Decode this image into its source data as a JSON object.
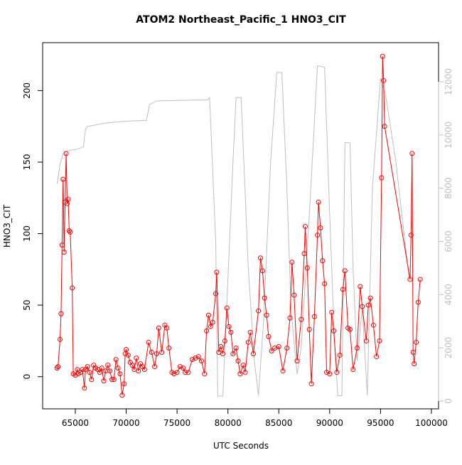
{
  "chart_data": {
    "type": "line",
    "title": "ATOM2 Northeast_Pacific_1 HNO3_CIT",
    "xlabel": "UTC Seconds",
    "ylabel": "HNO3_CIT",
    "xlim": [
      61790,
      100700
    ],
    "xticks": [
      65000,
      70000,
      75000,
      80000,
      85000,
      90000,
      95000,
      100000
    ],
    "ylim": [
      -22.5,
      233.5
    ],
    "yticks": [
      0,
      50,
      100,
      150,
      200
    ],
    "y2lim": [
      -294,
      13470
    ],
    "y2ticks": [
      0,
      2000,
      4000,
      6000,
      8000,
      10000,
      12000
    ],
    "series": [
      {
        "color": "#bebebe",
        "axis": "y2",
        "markers": false,
        "x": [
          63200,
          63500,
          63800,
          64200,
          65000,
          65800,
          66000,
          66200,
          68000,
          70000,
          72000,
          72300,
          73000,
          75000,
          78000,
          78200,
          78800,
          79000,
          79500,
          80500,
          80800,
          81300,
          82000,
          82600,
          83000,
          83500,
          84200,
          84800,
          85300,
          85800,
          86200,
          86800,
          87200,
          88000,
          88800,
          89500,
          90000,
          90500,
          90800,
          91200,
          91500,
          92000,
          92300,
          92700,
          93200,
          93700,
          94200,
          95000,
          95500,
          96500,
          97800
        ],
        "values": [
          8150,
          8900,
          9300,
          9400,
          9450,
          9550,
          10200,
          10320,
          10450,
          10520,
          10550,
          11150,
          11280,
          11300,
          11320,
          11410,
          6000,
          190,
          190,
          9000,
          11410,
          11410,
          5000,
          1500,
          200,
          3000,
          9000,
          12350,
          12350,
          8000,
          3500,
          1000,
          2000,
          7000,
          12600,
          12550,
          7000,
          2000,
          200,
          200,
          9720,
          9700,
          5000,
          1500,
          3500,
          200,
          8000,
          12130,
          11500,
          9000,
          4650
        ]
      },
      {
        "color": "#ff0000",
        "axis": "y",
        "markers": true,
        "x": [
          63200,
          63300,
          63500,
          63600,
          63700,
          63800,
          63900,
          64000,
          64100,
          64200,
          64300,
          64400,
          64500,
          64700,
          64800,
          65000,
          65200,
          65300,
          65500,
          65700,
          65900,
          66000,
          66200,
          66400,
          66600,
          66800,
          67000,
          67200,
          67400,
          67600,
          67800,
          68000,
          68200,
          68400,
          68600,
          68800,
          69000,
          69200,
          69400,
          69600,
          69800,
          69900,
          70000,
          70200,
          70400,
          70600,
          70800,
          71000,
          71200,
          71400,
          71600,
          71800,
          72200,
          72500,
          72800,
          73000,
          73200,
          73500,
          73800,
          74000,
          74200,
          74500,
          74700,
          75000,
          75300,
          75600,
          75800,
          76100,
          76500,
          76800,
          77100,
          77400,
          77700,
          77900,
          78100,
          78300,
          78500,
          78800,
          78900,
          79100,
          79300,
          79500,
          79700,
          79900,
          80100,
          80300,
          80500,
          80800,
          81000,
          81200,
          81500,
          81700,
          82000,
          82200,
          82500,
          83000,
          83200,
          83400,
          83600,
          83800,
          84000,
          84300,
          84600,
          85000,
          85400,
          85800,
          86100,
          86300,
          86500,
          86800,
          87200,
          87500,
          87600,
          87800,
          88000,
          88200,
          88500,
          88800,
          88900,
          89100,
          89300,
          89500,
          89700,
          90000,
          90200,
          90400,
          90700,
          91000,
          91300,
          91500,
          91800,
          92000,
          92300,
          92700,
          93000,
          93200,
          93600,
          93800,
          94000,
          94300,
          94600,
          94900,
          95100,
          95200,
          95300,
          95400,
          97900,
          98000,
          98100,
          98200,
          98300,
          98500,
          98700,
          98900
        ],
        "values": [
          6,
          7,
          26,
          44,
          92,
          138,
          87,
          122,
          156,
          121,
          124,
          102,
          101,
          62,
          2,
          1,
          5,
          2,
          3,
          5,
          -8,
          5,
          7,
          3,
          -2,
          8,
          6,
          5,
          3,
          6,
          -3,
          4,
          8,
          4,
          -2,
          -2,
          12,
          6,
          2,
          -13,
          -5,
          16,
          19,
          15,
          10,
          8,
          5,
          13,
          4,
          9,
          7,
          5,
          24,
          17,
          7,
          16,
          34,
          17,
          36,
          34,
          20,
          3,
          2,
          3,
          7,
          6,
          3,
          3,
          12,
          13,
          14,
          11,
          2,
          32,
          43,
          35,
          38,
          58,
          73,
          17,
          21,
          16,
          25,
          48,
          35,
          31,
          16,
          20,
          11,
          2,
          8,
          3,
          24,
          31,
          16,
          46,
          83,
          74,
          55,
          43,
          28,
          18,
          20,
          21,
          4,
          20,
          41,
          80,
          57,
          11,
          40,
          86,
          105,
          76,
          33,
          -5,
          42,
          99,
          122,
          104,
          81,
          65,
          3,
          2,
          45,
          32,
          3,
          15,
          61,
          74,
          34,
          33,
          5,
          20,
          63,
          49,
          25,
          50,
          55,
          36,
          14,
          25,
          139,
          224,
          207,
          175,
          68,
          99,
          156,
          17,
          9,
          24,
          52,
          68
        ]
      }
    ]
  }
}
